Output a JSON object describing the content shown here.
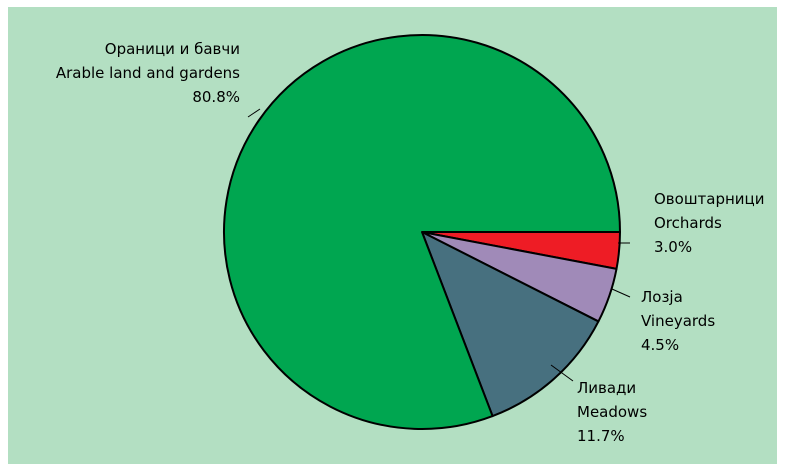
{
  "chart_data": {
    "type": "pie",
    "start_angle_deg": 0,
    "direction": "clockwise",
    "slices": [
      {
        "label_mk": "Овоштарници",
        "label_en": "Orchards",
        "value": 3.0,
        "value_label": "3.0%",
        "color": "#ee1c25"
      },
      {
        "label_mk": "Лозја",
        "label_en": "Vineyards",
        "value": 4.5,
        "value_label": "4.5%",
        "color": "#a08ab8"
      },
      {
        "label_mk": "Ливади",
        "label_en": "Meadows",
        "value": 11.7,
        "value_label": "11.7%",
        "color": "#47707f"
      },
      {
        "label_mk": "Ораници и бавчи",
        "label_en": "Arable land and gardens",
        "value": 80.8,
        "value_label": "80.8%",
        "color": "#00a650"
      }
    ]
  },
  "colors": {
    "background": "#b3dfc2",
    "outline": "#000000"
  }
}
